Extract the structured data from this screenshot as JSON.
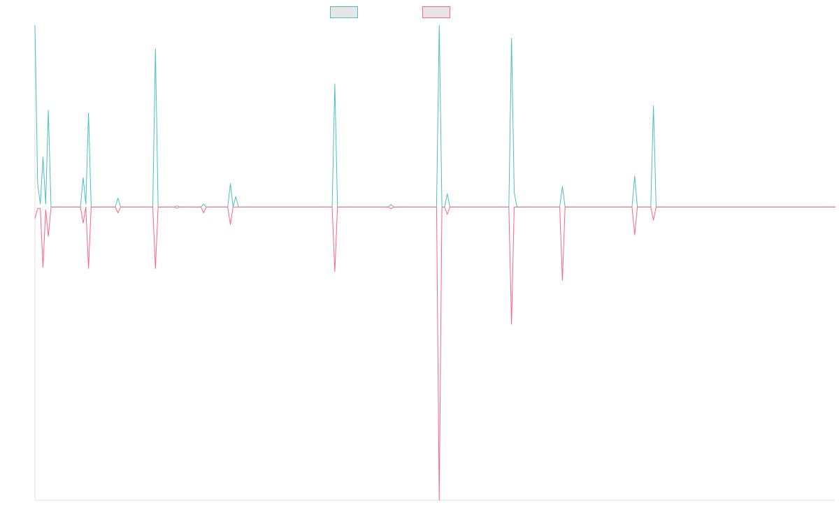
{
  "chart_data": {
    "type": "line",
    "title": "",
    "xlabel": "",
    "ylabel": "",
    "x_count": 300,
    "ylim": [
      -1.0,
      0.62
    ],
    "grid": false,
    "legend_position": "top-center",
    "series": [
      {
        "name": "",
        "color": "#4bc0c0",
        "fill": "#e6e6e6",
        "points": [
          [
            0,
            0.62
          ],
          [
            1,
            0.08
          ],
          [
            2,
            0.01
          ],
          [
            3,
            0.17
          ],
          [
            4,
            0.01
          ],
          [
            5,
            0.33
          ],
          [
            6,
            0.0
          ],
          [
            17,
            0.0
          ],
          [
            18,
            0.1
          ],
          [
            19,
            0.01
          ],
          [
            20,
            0.32
          ],
          [
            21,
            0.0
          ],
          [
            30,
            0.0
          ],
          [
            31,
            0.03
          ],
          [
            32,
            0.0
          ],
          [
            44,
            0.0
          ],
          [
            45,
            0.54
          ],
          [
            46,
            0.0
          ],
          [
            52,
            0.0
          ],
          [
            53,
            0.004
          ],
          [
            54,
            0.0
          ],
          [
            62,
            0.0
          ],
          [
            63,
            0.01
          ],
          [
            64,
            0.0
          ],
          [
            72,
            0.0
          ],
          [
            73,
            0.08
          ],
          [
            74,
            0.0
          ],
          [
            75,
            0.035
          ],
          [
            76,
            0.0
          ],
          [
            111,
            0.0
          ],
          [
            112,
            0.42
          ],
          [
            113,
            0.0
          ],
          [
            132,
            0.0
          ],
          [
            133,
            0.008
          ],
          [
            134,
            0.0
          ],
          [
            150,
            0.0
          ],
          [
            151,
            0.62
          ],
          [
            152,
            0.0
          ],
          [
            153,
            0.0
          ],
          [
            154,
            0.045
          ],
          [
            155,
            0.0
          ],
          [
            177,
            0.0
          ],
          [
            178,
            0.575
          ],
          [
            179,
            0.05
          ],
          [
            180,
            0.0
          ],
          [
            196,
            0.0
          ],
          [
            197,
            0.07
          ],
          [
            198,
            0.0
          ],
          [
            223,
            0.0
          ],
          [
            224,
            0.105
          ],
          [
            225,
            0.0
          ],
          [
            230,
            0.0
          ],
          [
            231,
            0.345
          ],
          [
            232,
            0.0
          ],
          [
            299,
            0.0
          ]
        ]
      },
      {
        "name": "",
        "color": "#ff6384",
        "fill": "#e6e6e6",
        "points": [
          [
            0,
            -0.04
          ],
          [
            1,
            -0.005
          ],
          [
            2,
            -0.005
          ],
          [
            3,
            -0.205
          ],
          [
            4,
            -0.01
          ],
          [
            5,
            -0.1
          ],
          [
            6,
            0.0
          ],
          [
            17,
            0.0
          ],
          [
            18,
            -0.055
          ],
          [
            19,
            0.0
          ],
          [
            20,
            -0.21
          ],
          [
            21,
            0.0
          ],
          [
            30,
            0.0
          ],
          [
            31,
            -0.02
          ],
          [
            32,
            0.0
          ],
          [
            44,
            0.0
          ],
          [
            45,
            -0.21
          ],
          [
            46,
            0.0
          ],
          [
            52,
            0.0
          ],
          [
            53,
            -0.004
          ],
          [
            54,
            0.0
          ],
          [
            62,
            0.0
          ],
          [
            63,
            -0.02
          ],
          [
            64,
            0.0
          ],
          [
            72,
            0.0
          ],
          [
            73,
            -0.06
          ],
          [
            74,
            0.0
          ],
          [
            111,
            0.0
          ],
          [
            112,
            -0.22
          ],
          [
            113,
            0.0
          ],
          [
            132,
            0.0
          ],
          [
            133,
            -0.006
          ],
          [
            134,
            0.0
          ],
          [
            150,
            0.0
          ],
          [
            151,
            -1.0
          ],
          [
            152,
            0.0
          ],
          [
            153,
            0.0
          ],
          [
            154,
            -0.025
          ],
          [
            155,
            0.0
          ],
          [
            177,
            0.0
          ],
          [
            178,
            -0.4
          ],
          [
            179,
            0.0
          ],
          [
            196,
            0.0
          ],
          [
            197,
            -0.25
          ],
          [
            198,
            0.0
          ],
          [
            223,
            0.0
          ],
          [
            224,
            -0.095
          ],
          [
            225,
            0.0
          ],
          [
            230,
            0.0
          ],
          [
            231,
            -0.045
          ],
          [
            232,
            0.0
          ],
          [
            299,
            0.0
          ]
        ]
      }
    ]
  }
}
